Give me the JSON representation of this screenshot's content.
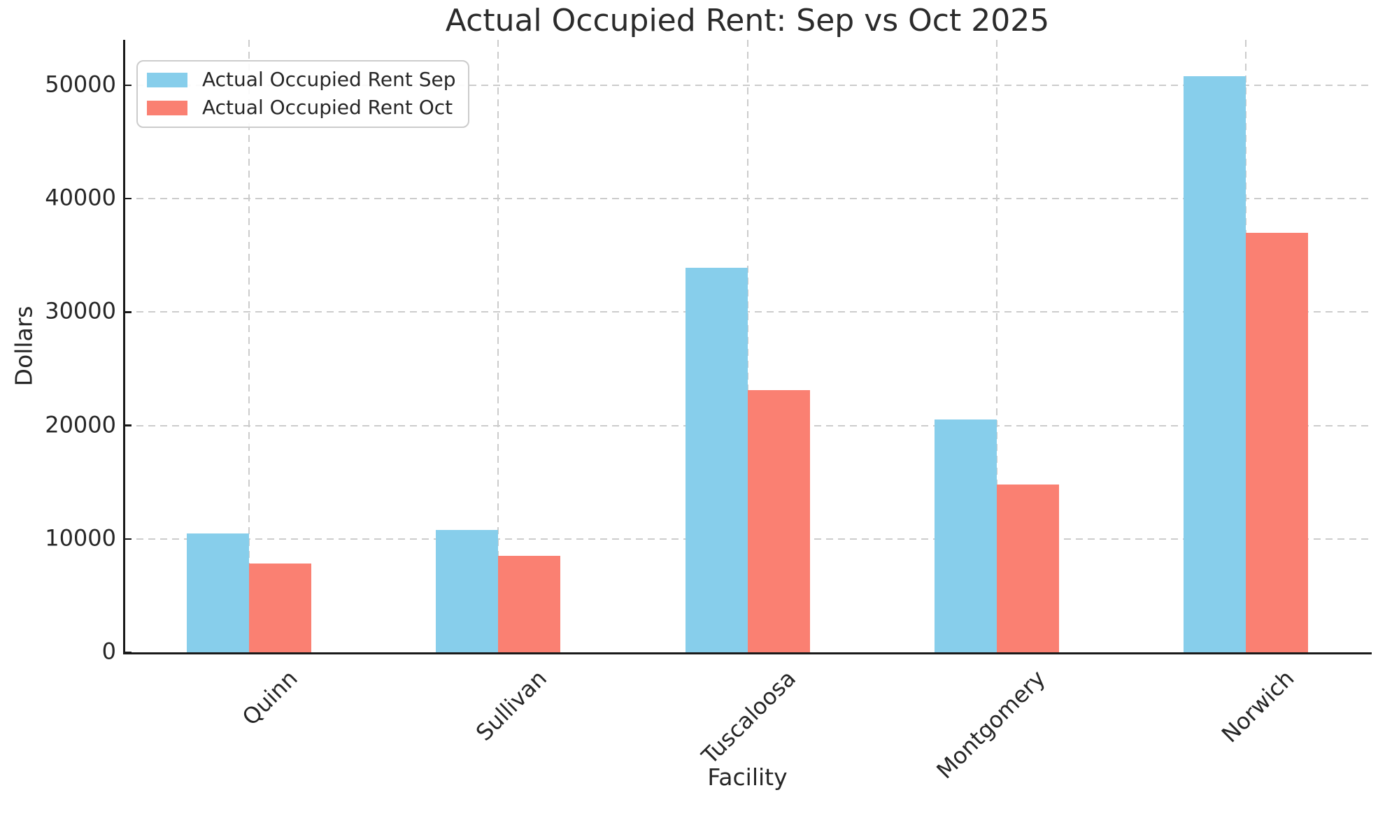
{
  "chart_data": {
    "type": "bar",
    "title": "Actual Occupied Rent: Sep vs Oct 2025",
    "xlabel": "Facility",
    "ylabel": "Dollars",
    "categories": [
      "Quinn",
      "Sullivan",
      "Tuscaloosa",
      "Montgomery",
      "Norwich"
    ],
    "series": [
      {
        "name": "Actual Occupied Rent Sep",
        "color": "#87CEEB",
        "values": [
          10500,
          10800,
          33900,
          20500,
          50800
        ]
      },
      {
        "name": "Actual Occupied Rent Oct",
        "color": "#FA8072",
        "values": [
          7800,
          8500,
          23100,
          14800,
          37000
        ]
      }
    ],
    "yticks": [
      0,
      10000,
      20000,
      30000,
      40000,
      50000
    ],
    "ytick_labels": [
      "0",
      "10000",
      "20000",
      "30000",
      "40000",
      "50000"
    ],
    "ylim": [
      0,
      54000
    ],
    "grid": true,
    "grid_linestyle": "dashed",
    "legend_position": "upper left",
    "xtick_rotation_deg": 45,
    "bar_width_fraction": 0.25,
    "style": {
      "grid_color": "#cccccc",
      "spine_color": "#1a1a1a",
      "text_color": "#262626",
      "background": "#ffffff"
    }
  }
}
